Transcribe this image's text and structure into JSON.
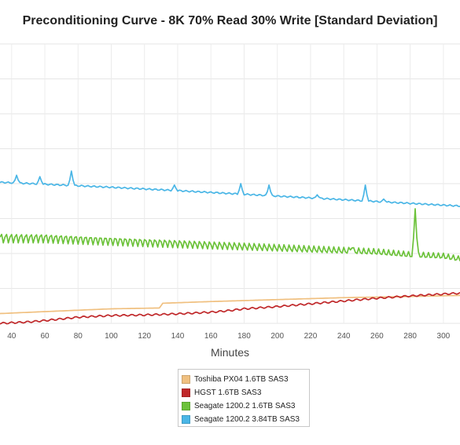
{
  "chart_data": {
    "type": "line",
    "title": "Preconditioning Curve - 8K 70% Read 30% Write [Standard Deviation]",
    "xlabel": "Minutes",
    "ylabel": "",
    "xlim": [
      33,
      310
    ],
    "ylim": [
      0,
      10
    ],
    "x_ticks": [
      "40",
      "60",
      "80",
      "100",
      "120",
      "140",
      "160",
      "180",
      "200",
      "220",
      "240",
      "260",
      "280",
      "300"
    ],
    "grid": true,
    "legend_position": "bottom-center",
    "series": [
      {
        "name": "Toshiba PX04 1.6TB SAS3",
        "color": "#f0c080",
        "points": [
          [
            33,
            0.35
          ],
          [
            60,
            0.42
          ],
          [
            100,
            0.52
          ],
          [
            129,
            0.55
          ],
          [
            131,
            0.72
          ],
          [
            160,
            0.78
          ],
          [
            200,
            0.85
          ],
          [
            240,
            0.92
          ],
          [
            280,
            0.96
          ],
          [
            310,
            1.0
          ]
        ]
      },
      {
        "name": "HGST 1.6TB SAS3",
        "color": "#c0282a",
        "points": [
          [
            33,
            0.0
          ],
          [
            50,
            0.05
          ],
          [
            60,
            0.1
          ],
          [
            80,
            0.22
          ],
          [
            100,
            0.28
          ],
          [
            120,
            0.3
          ],
          [
            140,
            0.34
          ],
          [
            160,
            0.4
          ],
          [
            170,
            0.45
          ],
          [
            180,
            0.52
          ],
          [
            200,
            0.6
          ],
          [
            220,
            0.7
          ],
          [
            240,
            0.8
          ],
          [
            260,
            0.9
          ],
          [
            280,
            0.98
          ],
          [
            300,
            1.05
          ],
          [
            310,
            1.08
          ]
        ]
      },
      {
        "name": "Seagate 1200.2 1.6TB SAS3",
        "color": "#6cc23a",
        "points": [
          [
            33,
            3.05
          ],
          [
            60,
            3.05
          ],
          [
            100,
            2.95
          ],
          [
            140,
            2.85
          ],
          [
            180,
            2.75
          ],
          [
            220,
            2.65
          ],
          [
            260,
            2.55
          ],
          [
            280,
            2.45
          ],
          [
            300,
            2.4
          ],
          [
            310,
            2.3
          ]
        ],
        "spikes": [
          [
            283,
            4.1
          ],
          [
            245,
            2.7
          ]
        ]
      },
      {
        "name": "Seagate 1200.2 3.84TB SAS3",
        "color": "#4ab6e6",
        "points": [
          [
            33,
            5.05
          ],
          [
            60,
            4.98
          ],
          [
            100,
            4.87
          ],
          [
            140,
            4.75
          ],
          [
            180,
            4.62
          ],
          [
            220,
            4.49
          ],
          [
            260,
            4.36
          ],
          [
            300,
            4.23
          ],
          [
            310,
            4.2
          ]
        ],
        "spikes": [
          [
            43,
            5.3
          ],
          [
            57,
            5.25
          ],
          [
            76,
            5.45
          ],
          [
            138,
            4.95
          ],
          [
            178,
            5.0
          ],
          [
            195,
            4.95
          ],
          [
            224,
            4.6
          ],
          [
            253,
            4.95
          ],
          [
            264,
            4.45
          ]
        ]
      }
    ]
  }
}
